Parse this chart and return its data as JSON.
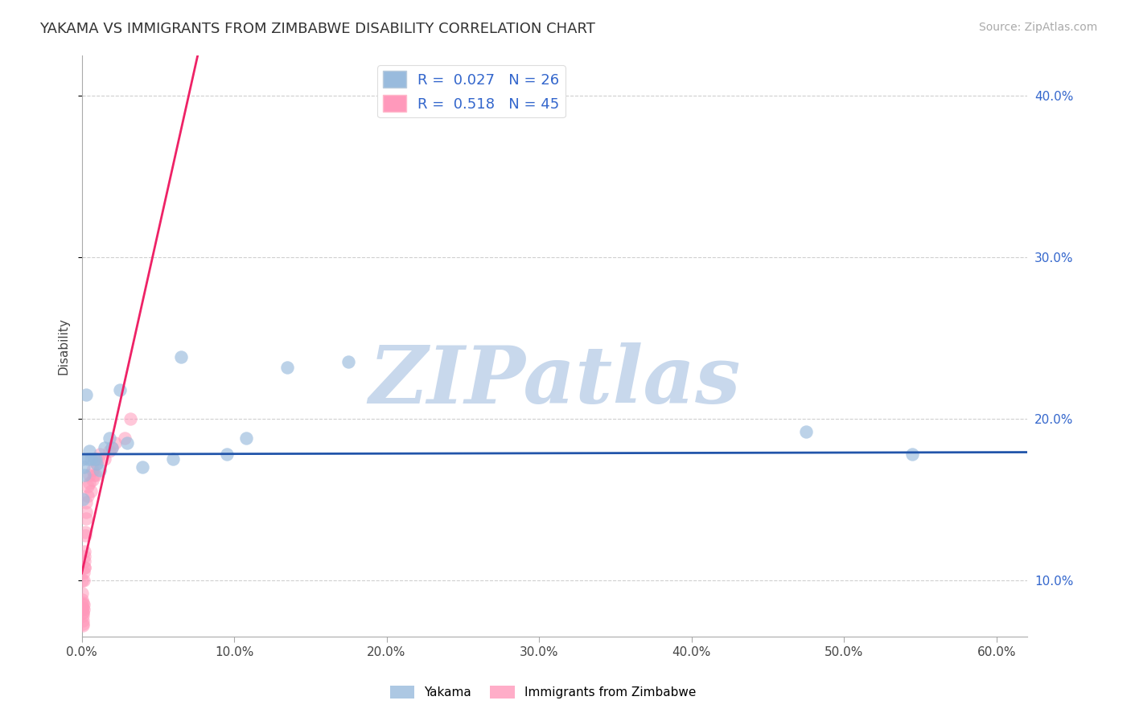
{
  "title": "YAKAMA VS IMMIGRANTS FROM ZIMBABWE DISABILITY CORRELATION CHART",
  "source": "Source: ZipAtlas.com",
  "ylabel": "Disability",
  "xlim": [
    0.0,
    0.62
  ],
  "ylim": [
    0.065,
    0.425
  ],
  "yticks": [
    0.1,
    0.2,
    0.3,
    0.4
  ],
  "xticks": [
    0.0,
    0.1,
    0.2,
    0.3,
    0.4,
    0.5,
    0.6
  ],
  "yakama_x": [
    0.0008,
    0.001,
    0.0015,
    0.002,
    0.003,
    0.004,
    0.005,
    0.006,
    0.008,
    0.009,
    0.01,
    0.012,
    0.015,
    0.018,
    0.02,
    0.025,
    0.03,
    0.04,
    0.06,
    0.065,
    0.095,
    0.108,
    0.135,
    0.175,
    0.475,
    0.545
  ],
  "yakama_y": [
    0.175,
    0.15,
    0.17,
    0.165,
    0.215,
    0.175,
    0.18,
    0.175,
    0.175,
    0.175,
    0.172,
    0.168,
    0.182,
    0.188,
    0.182,
    0.218,
    0.185,
    0.17,
    0.175,
    0.238,
    0.178,
    0.188,
    0.232,
    0.235,
    0.192,
    0.178
  ],
  "zimbabwe_x": [
    0.0002,
    0.0003,
    0.0004,
    0.0005,
    0.0005,
    0.0006,
    0.0007,
    0.0008,
    0.0008,
    0.0009,
    0.001,
    0.001,
    0.001,
    0.0012,
    0.0013,
    0.0014,
    0.0015,
    0.0016,
    0.0018,
    0.002,
    0.002,
    0.002,
    0.0022,
    0.0025,
    0.003,
    0.003,
    0.003,
    0.004,
    0.004,
    0.005,
    0.005,
    0.006,
    0.007,
    0.007,
    0.008,
    0.009,
    0.01,
    0.011,
    0.012,
    0.015,
    0.018,
    0.02,
    0.022,
    0.028,
    0.032
  ],
  "zimbabwe_y": [
    0.1,
    0.092,
    0.088,
    0.082,
    0.085,
    0.078,
    0.08,
    0.073,
    0.075,
    0.072,
    0.08,
    0.083,
    0.086,
    0.082,
    0.085,
    0.1,
    0.105,
    0.108,
    0.112,
    0.108,
    0.115,
    0.118,
    0.13,
    0.128,
    0.138,
    0.142,
    0.148,
    0.152,
    0.158,
    0.16,
    0.165,
    0.155,
    0.162,
    0.168,
    0.165,
    0.165,
    0.172,
    0.175,
    0.178,
    0.175,
    0.18,
    0.182,
    0.185,
    0.188,
    0.2
  ],
  "r_yakama": 0.027,
  "n_yakama": 26,
  "r_zimbabwe": 0.518,
  "n_zimbabwe": 45,
  "series1_label": "Yakama",
  "series2_label": "Immigrants from Zimbabwe",
  "blue_scatter_color": "#99BBDD",
  "pink_scatter_color": "#FF99BB",
  "blue_line_color": "#2255AA",
  "pink_line_color": "#EE2266",
  "watermark_color": "#C8D8EC",
  "grid_color": "#BBBBBB",
  "title_fontsize": 13,
  "label_fontsize": 11,
  "tick_fontsize": 11,
  "legend_fontsize": 13,
  "source_fontsize": 10,
  "pink_line_solid_x_end": 0.38,
  "pink_line_dashed_x_end": 0.58,
  "blue_line_y_intercept": 0.178,
  "blue_line_slope": 0.002
}
